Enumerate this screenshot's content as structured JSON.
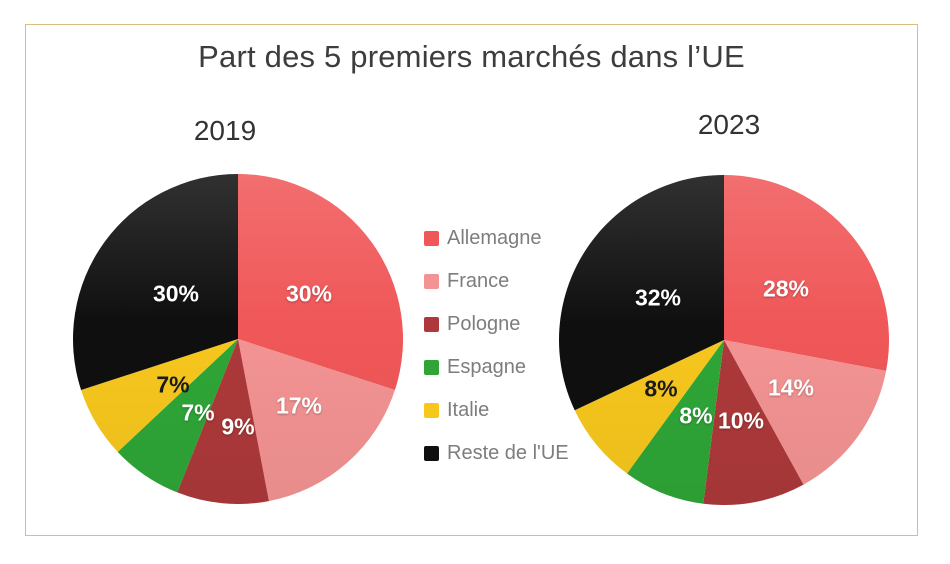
{
  "chart_data": {
    "type": "pie",
    "title": "Part des 5 premiers marchés dans l’UE",
    "categories": [
      "Allemagne",
      "France",
      "Pologne",
      "Espagne",
      "Italie",
      "Reste de l'UE"
    ],
    "colors": [
      "#f05758",
      "#f49393",
      "#ad393a",
      "#2ea637",
      "#f7c71d",
      "#0f0f0f"
    ],
    "series": [
      {
        "name": "2019",
        "values": [
          30,
          17,
          9,
          7,
          7,
          30
        ]
      },
      {
        "name": "2023",
        "values": [
          28,
          14,
          10,
          8,
          8,
          32
        ]
      }
    ],
    "value_format": "percent",
    "value_suffix": "%",
    "legend_position": "center-between-pies",
    "label_text_colors": [
      "#ffffff",
      "#ffffff",
      "#ffffff",
      "#ffffff",
      "#1a1a1a",
      "#ffffff"
    ],
    "card_border_color": "#d8bf7f"
  }
}
